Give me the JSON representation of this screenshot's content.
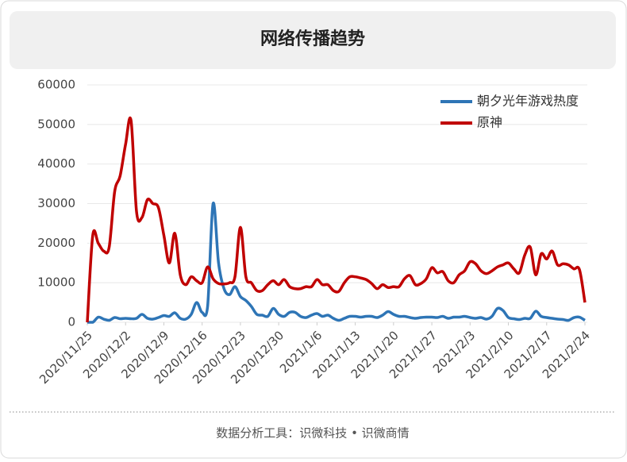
{
  "chart_data": {
    "type": "line",
    "title": "网络传播趋势",
    "footer": "数据分析工具：识微科技 • 识微商情",
    "categories": [
      "2020/11/25",
      null,
      null,
      null,
      null,
      null,
      null,
      "2020/12/2",
      null,
      null,
      null,
      null,
      null,
      null,
      "2020/12/9",
      null,
      null,
      null,
      null,
      null,
      null,
      "2020/12/16",
      null,
      null,
      null,
      null,
      null,
      null,
      "2020/12/23",
      null,
      null,
      null,
      null,
      null,
      null,
      "2020/12/30",
      null,
      null,
      null,
      null,
      null,
      null,
      "2021/1/6",
      null,
      null,
      null,
      null,
      null,
      null,
      "2021/1/13",
      null,
      null,
      null,
      null,
      null,
      null,
      "2021/1/20",
      null,
      null,
      null,
      null,
      null,
      null,
      "2021/1/27",
      null,
      null,
      null,
      null,
      null,
      null,
      "2021/2/3",
      null,
      null,
      null,
      null,
      null,
      null,
      "2021/2/10",
      null,
      null,
      null,
      null,
      null,
      null,
      "2021/2/17",
      null,
      null,
      null,
      null,
      null,
      null,
      "2021/2/24"
    ],
    "series": [
      {
        "name": "朝夕光年游戏热度",
        "color": "#2e75b6",
        "values": [
          0,
          0,
          1300,
          800,
          500,
          1200,
          900,
          1000,
          900,
          1000,
          2000,
          1000,
          800,
          1200,
          1700,
          1500,
          2400,
          1000,
          800,
          2000,
          5000,
          2500,
          4000,
          30000,
          15000,
          8500,
          7000,
          9000,
          6500,
          5500,
          4000,
          2000,
          1800,
          1500,
          3500,
          2000,
          1500,
          2500,
          2500,
          1500,
          1200,
          1800,
          2200,
          1500,
          1800,
          1000,
          500,
          1000,
          1500,
          1500,
          1300,
          1500,
          1500,
          1200,
          1800,
          2700,
          2000,
          1500,
          1500,
          1200,
          1000,
          1200,
          1300,
          1300,
          1200,
          1500,
          1000,
          1300,
          1300,
          1500,
          1200,
          1000,
          1200,
          800,
          1500,
          3500,
          3000,
          1200,
          900,
          700,
          1000,
          1000,
          2800,
          1500,
          1200,
          1000,
          800,
          700,
          500,
          1200,
          1300,
          500
        ]
      },
      {
        "name": "原神",
        "color": "#c00000",
        "values": [
          0,
          22000,
          20000,
          18000,
          19000,
          33000,
          37000,
          45000,
          51000,
          28000,
          26500,
          31000,
          30000,
          29000,
          22000,
          15000,
          22500,
          12000,
          9500,
          11500,
          10500,
          10000,
          14000,
          11000,
          9800,
          9700,
          10000,
          11500,
          24000,
          11500,
          10000,
          8000,
          8000,
          9500,
          10500,
          9500,
          10800,
          9000,
          8500,
          8500,
          9000,
          9000,
          10800,
          9500,
          9500,
          8000,
          7800,
          10000,
          11500,
          11500,
          11200,
          10800,
          9800,
          8500,
          9500,
          8800,
          9000,
          9000,
          11000,
          11800,
          9500,
          9800,
          11000,
          13800,
          12500,
          12800,
          10500,
          10000,
          12000,
          13000,
          15300,
          14800,
          13000,
          12300,
          13000,
          14000,
          14500,
          15000,
          13500,
          12500,
          17000,
          19000,
          12000,
          17300,
          16000,
          18000,
          14500,
          14800,
          14500,
          13500,
          13300,
          5000
        ]
      }
    ],
    "ylim": [
      0,
      60000
    ],
    "yticks": [
      0,
      10000,
      20000,
      30000,
      40000,
      50000,
      60000
    ],
    "grid": true,
    "legend": "top-right"
  }
}
